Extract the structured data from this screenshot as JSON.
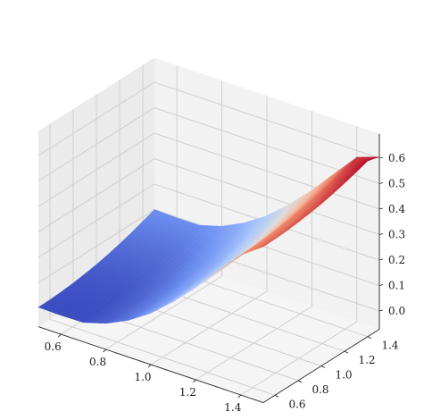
{
  "chart_data": {
    "type": "surface",
    "title": "",
    "xlabel": "",
    "ylabel": "",
    "zlabel": "",
    "colormap": "coolwarm",
    "colormap_stops": [
      "#3b4cc0",
      "#6f92f3",
      "#aac7fd",
      "#dddcdc",
      "#f7b89c",
      "#e7745b",
      "#b40426"
    ],
    "xlim": [
      0.5,
      1.5
    ],
    "ylim": [
      0.5,
      1.5
    ],
    "zlim": [
      0.0,
      0.6
    ],
    "x_ticks": [
      "0.6",
      "0.8",
      "1.0",
      "1.2",
      "1.4"
    ],
    "y_ticks": [
      "0.6",
      "0.8",
      "1.0",
      "1.2",
      "1.4"
    ],
    "z_ticks": [
      "0.0",
      "0.1",
      "0.2",
      "0.3",
      "0.4",
      "0.5",
      "0.6"
    ],
    "x_values": [
      0.5,
      0.6,
      0.7,
      0.8,
      0.9,
      1.0,
      1.1,
      1.2,
      1.3,
      1.4,
      1.5
    ],
    "y_values": [
      0.5,
      0.6,
      0.7,
      0.8,
      0.9,
      1.0,
      1.1,
      1.2,
      1.3,
      1.4,
      1.5
    ],
    "z_values": [
      [
        0.004,
        0.005,
        0.008,
        0.013,
        0.02,
        0.028,
        0.039,
        0.052,
        0.066,
        0.083,
        0.1
      ],
      [
        0.002,
        0.002,
        0.005,
        0.01,
        0.017,
        0.025,
        0.036,
        0.048,
        0.063,
        0.079,
        0.097
      ],
      [
        0.004,
        0.005,
        0.007,
        0.012,
        0.018,
        0.027,
        0.037,
        0.05,
        0.064,
        0.08,
        0.098
      ],
      [
        0.03,
        0.031,
        0.034,
        0.038,
        0.045,
        0.053,
        0.064,
        0.076,
        0.09,
        0.106,
        0.124
      ],
      [
        0.072,
        0.073,
        0.076,
        0.081,
        0.087,
        0.096,
        0.106,
        0.119,
        0.133,
        0.149,
        0.167
      ],
      [
        0.13,
        0.131,
        0.134,
        0.139,
        0.146,
        0.154,
        0.165,
        0.177,
        0.192,
        0.208,
        0.225
      ],
      [
        0.205,
        0.206,
        0.209,
        0.213,
        0.22,
        0.228,
        0.239,
        0.252,
        0.266,
        0.282,
        0.3
      ],
      [
        0.29,
        0.291,
        0.294,
        0.299,
        0.306,
        0.314,
        0.325,
        0.337,
        0.352,
        0.368,
        0.385
      ],
      [
        0.385,
        0.386,
        0.389,
        0.394,
        0.4,
        0.409,
        0.42,
        0.432,
        0.446,
        0.463,
        0.48
      ],
      [
        0.478,
        0.479,
        0.482,
        0.487,
        0.494,
        0.502,
        0.513,
        0.526,
        0.54,
        0.556,
        0.574
      ],
      [
        0.54,
        0.541,
        0.544,
        0.549,
        0.556,
        0.564,
        0.575,
        0.588,
        0.602,
        0.618,
        0.605
      ]
    ],
    "grid": true,
    "legend": "none"
  }
}
